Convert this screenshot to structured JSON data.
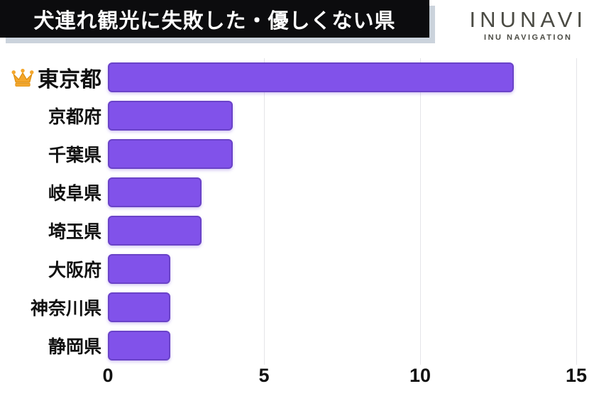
{
  "title": {
    "text": "犬連れ観光に失敗した・優しくない県"
  },
  "logo": {
    "name": "INUNAVI",
    "subtitle": "INU NAVIGATION",
    "color": "#4b4b44"
  },
  "icons": {
    "rank1_marker": "crown-icon",
    "crown_color": "#f4a72d",
    "crown_outline": "#e0900e"
  },
  "colors": {
    "bar_fill": "#8152ea",
    "bar_border": "#6a43c8",
    "gridline": "#e4e4e8",
    "title_bg": "#0c0c0e",
    "title_fg": "#ffffff",
    "text": "#111111"
  },
  "chart_data": {
    "type": "bar",
    "orientation": "horizontal",
    "title": "犬連れ観光に失敗した・優しくない県",
    "categories": [
      "東京都",
      "京都府",
      "千葉県",
      "岐阜県",
      "埼玉県",
      "大阪府",
      "神奈川県",
      "静岡県"
    ],
    "values": [
      13,
      4,
      4,
      3,
      3,
      2,
      2,
      2
    ],
    "xlabel": "",
    "ylabel": "",
    "xlim": [
      0,
      15
    ],
    "xticks": [
      0,
      5,
      10,
      15
    ],
    "grid": true,
    "legend": false,
    "top_rank_has_crown": true
  }
}
